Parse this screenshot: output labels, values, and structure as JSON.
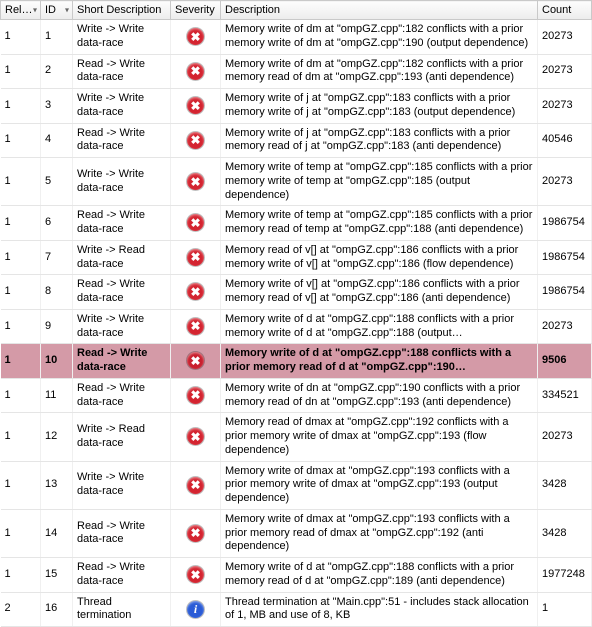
{
  "columns": {
    "relat": "Relat…",
    "id": "ID",
    "short": "Short Description",
    "severity": "Severity",
    "description": "Description",
    "count": "Count",
    "sort_indicator": "▾"
  },
  "severity_glyphs": {
    "error": "✖",
    "info": "i"
  },
  "selected_row_id": 10,
  "rows": [
    {
      "relat": "1",
      "id": "1",
      "short": "Write -> Write data-race",
      "sev": "error",
      "desc": "Memory write of dm at \"ompGZ.cpp\":182 conflicts with a prior memory write of dm at \"ompGZ.cpp\":190 (output dependence)",
      "count": "20273"
    },
    {
      "relat": "1",
      "id": "2",
      "short": "Read -> Write data-race",
      "sev": "error",
      "desc": "Memory write of dm at \"ompGZ.cpp\":182 conflicts with a prior memory read of dm at \"ompGZ.cpp\":193 (anti dependence)",
      "count": "20273"
    },
    {
      "relat": "1",
      "id": "3",
      "short": "Write -> Write data-race",
      "sev": "error",
      "desc": "Memory write of j at \"ompGZ.cpp\":183 conflicts with a prior memory write of j at \"ompGZ.cpp\":183 (output dependence)",
      "count": "20273"
    },
    {
      "relat": "1",
      "id": "4",
      "short": "Read -> Write data-race",
      "sev": "error",
      "desc": "Memory write of j at \"ompGZ.cpp\":183 conflicts with a prior memory read of j at \"ompGZ.cpp\":183 (anti dependence)",
      "count": "40546"
    },
    {
      "relat": "1",
      "id": "5",
      "short": "Write -> Write data-race",
      "sev": "error",
      "desc": "Memory write of temp at \"ompGZ.cpp\":185 conflicts with a prior memory write of temp at \"ompGZ.cpp\":185 (output dependence)",
      "count": "20273"
    },
    {
      "relat": "1",
      "id": "6",
      "short": "Read -> Write data-race",
      "sev": "error",
      "desc": "Memory write of temp at \"ompGZ.cpp\":185 conflicts with a prior memory read of temp at \"ompGZ.cpp\":188 (anti dependence)",
      "count": "1986754"
    },
    {
      "relat": "1",
      "id": "7",
      "short": "Write -> Read data-race",
      "sev": "error",
      "desc": "Memory read of v[] at \"ompGZ.cpp\":186 conflicts with a prior memory write of v[] at \"ompGZ.cpp\":186 (flow dependence)",
      "count": "1986754"
    },
    {
      "relat": "1",
      "id": "8",
      "short": "Read -> Write data-race",
      "sev": "error",
      "desc": "Memory write of v[] at \"ompGZ.cpp\":186 conflicts with a prior memory read of v[] at \"ompGZ.cpp\":186 (anti dependence)",
      "count": "1986754"
    },
    {
      "relat": "1",
      "id": "9",
      "short": "Write -> Write data-race",
      "sev": "error",
      "desc": "Memory write of d at \"ompGZ.cpp\":188 conflicts with a prior memory write of d at \"ompGZ.cpp\":188 (output…",
      "count": "20273"
    },
    {
      "relat": "1",
      "id": "10",
      "short": "Read -> Write data-race",
      "sev": "error",
      "desc": "Memory write of d at \"ompGZ.cpp\":188 conflicts with a prior memory read of d at \"ompGZ.cpp\":190…",
      "count": "9506"
    },
    {
      "relat": "1",
      "id": "11",
      "short": "Read -> Write data-race",
      "sev": "error",
      "desc": "Memory write of dn at \"ompGZ.cpp\":190 conflicts with a prior memory read of dn at \"ompGZ.cpp\":193 (anti dependence)",
      "count": "334521"
    },
    {
      "relat": "1",
      "id": "12",
      "short": "Write -> Read data-race",
      "sev": "error",
      "desc": "Memory read of dmax at \"ompGZ.cpp\":192 conflicts with a prior memory write of dmax at \"ompGZ.cpp\":193 (flow dependence)",
      "count": "20273"
    },
    {
      "relat": "1",
      "id": "13",
      "short": "Write -> Write data-race",
      "sev": "error",
      "desc": "Memory write of dmax at \"ompGZ.cpp\":193 conflicts with a prior memory write of dmax at \"ompGZ.cpp\":193 (output dependence)",
      "count": "3428"
    },
    {
      "relat": "1",
      "id": "14",
      "short": "Read -> Write data-race",
      "sev": "error",
      "desc": "Memory write of dmax at \"ompGZ.cpp\":193 conflicts with a prior memory read of dmax at \"ompGZ.cpp\":192 (anti dependence)",
      "count": "3428"
    },
    {
      "relat": "1",
      "id": "15",
      "short": "Read -> Write data-race",
      "sev": "error",
      "desc": "Memory write of d at \"ompGZ.cpp\":188 conflicts with a prior memory read of d at \"ompGZ.cpp\":189 (anti dependence)",
      "count": "1977248"
    },
    {
      "relat": "2",
      "id": "16",
      "short": "Thread termination",
      "sev": "info",
      "desc": "Thread termination at \"Main.cpp\":51 - includes stack allocation of 1, MB and use of 8, KB",
      "count": "1"
    }
  ]
}
